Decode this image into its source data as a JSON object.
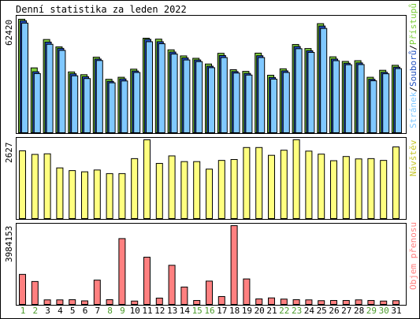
{
  "title": "Denní statistika za leden 2022",
  "colors": {
    "background": "#ffffff",
    "frame": "#000000",
    "pristupy": "#80d040",
    "soubory": "#2050c0",
    "stranky": "#80c8ff",
    "navstevy": "#ffff80",
    "objem": "#ff8080",
    "weekend_label": "#4a9a2a",
    "weekday_label": "#000000",
    "separator": "#000000"
  },
  "panels": {
    "hits": {
      "max_label": "62420",
      "legend": [
        {
          "text": "Stránek",
          "color_key": "stranky"
        },
        {
          "text": "/",
          "color_key": "separator"
        },
        {
          "text": "Souborů",
          "color_key": "soubory"
        },
        {
          "text": "/",
          "color_key": "separator"
        },
        {
          "text": "Přístupů",
          "color_key": "pristupy"
        }
      ]
    },
    "visits": {
      "max_label": "2627",
      "legend_text": "Návštěv"
    },
    "volume": {
      "max_label": "3984153",
      "legend_text": "Objem přenosu"
    }
  },
  "chart_data": {
    "type": "bar",
    "title": "Denní statistika za leden 2022",
    "categories": [
      "1",
      "2",
      "3",
      "4",
      "5",
      "6",
      "7",
      "8",
      "9",
      "10",
      "11",
      "12",
      "13",
      "14",
      "15",
      "16",
      "17",
      "18",
      "19",
      "20",
      "21",
      "22",
      "23",
      "24",
      "25",
      "26",
      "27",
      "28",
      "29",
      "30",
      "31"
    ],
    "weekend_days": [
      "1",
      "2",
      "8",
      "9",
      "15",
      "16",
      "22",
      "23",
      "29",
      "30"
    ],
    "panels": [
      {
        "name": "hits",
        "ylim": [
          0,
          62420
        ],
        "series": [
          {
            "name": "Přístupů",
            "values": [
              61600,
              35200,
              50600,
              46600,
              33000,
              31500,
              41000,
              29000,
              30100,
              34500,
              51300,
              50800,
              45000,
              41700,
              40400,
              37300,
              43100,
              34200,
              33300,
              43200,
              31200,
              34700,
              47900,
              45700,
              59200,
              41200,
              38700,
              39100,
              30100,
              33900,
              36600
            ]
          },
          {
            "name": "Souborů",
            "values": [
              60800,
              33100,
              49200,
              45800,
              32000,
              30400,
              40000,
              27900,
              29200,
              33500,
              50700,
              49400,
              43800,
              40600,
              39500,
              36100,
              41900,
              33200,
              32200,
              41800,
              30000,
              33600,
              46800,
              44500,
              57900,
              40000,
              37700,
              37900,
              29000,
              32800,
              35600
            ]
          },
          {
            "name": "Stránek",
            "values": [
              59500,
              32100,
              48000,
              44700,
              30900,
              29400,
              39200,
              27100,
              28100,
              32700,
              49400,
              48300,
              42700,
              39500,
              38600,
              35300,
              40800,
              32400,
              31300,
              40800,
              29100,
              32700,
              45600,
              43600,
              56600,
              39100,
              36900,
              37000,
              28200,
              32000,
              34800
            ]
          }
        ]
      },
      {
        "name": "visits",
        "ylim": [
          0,
          2627
        ],
        "series": [
          {
            "name": "Návštěv",
            "values": [
              2260,
              2140,
              2160,
              1690,
              1600,
              1560,
              1620,
              1500,
              1500,
              2000,
              2627,
              1840,
              2090,
              1900,
              1900,
              1650,
              1940,
              1970,
              2370,
              2370,
              2110,
              2280,
              2630,
              2250,
              2150,
              1930,
              2070,
              1990,
              2000,
              1940,
              2390
            ]
          }
        ]
      },
      {
        "name": "volume",
        "ylim": [
          0,
          3984153
        ],
        "series": [
          {
            "name": "Objem přenosu",
            "values": [
              1520000,
              1160000,
              230000,
              230000,
              240000,
              180000,
              1230000,
              240000,
              3330000,
              170000,
              2390000,
              320000,
              1980000,
              880000,
              200000,
              1180000,
              400000,
              3984153,
              1290000,
              280000,
              330000,
              270000,
              240000,
              230000,
              190000,
              200000,
              200000,
              230000,
              200000,
              170000,
              190000
            ]
          }
        ]
      }
    ]
  }
}
